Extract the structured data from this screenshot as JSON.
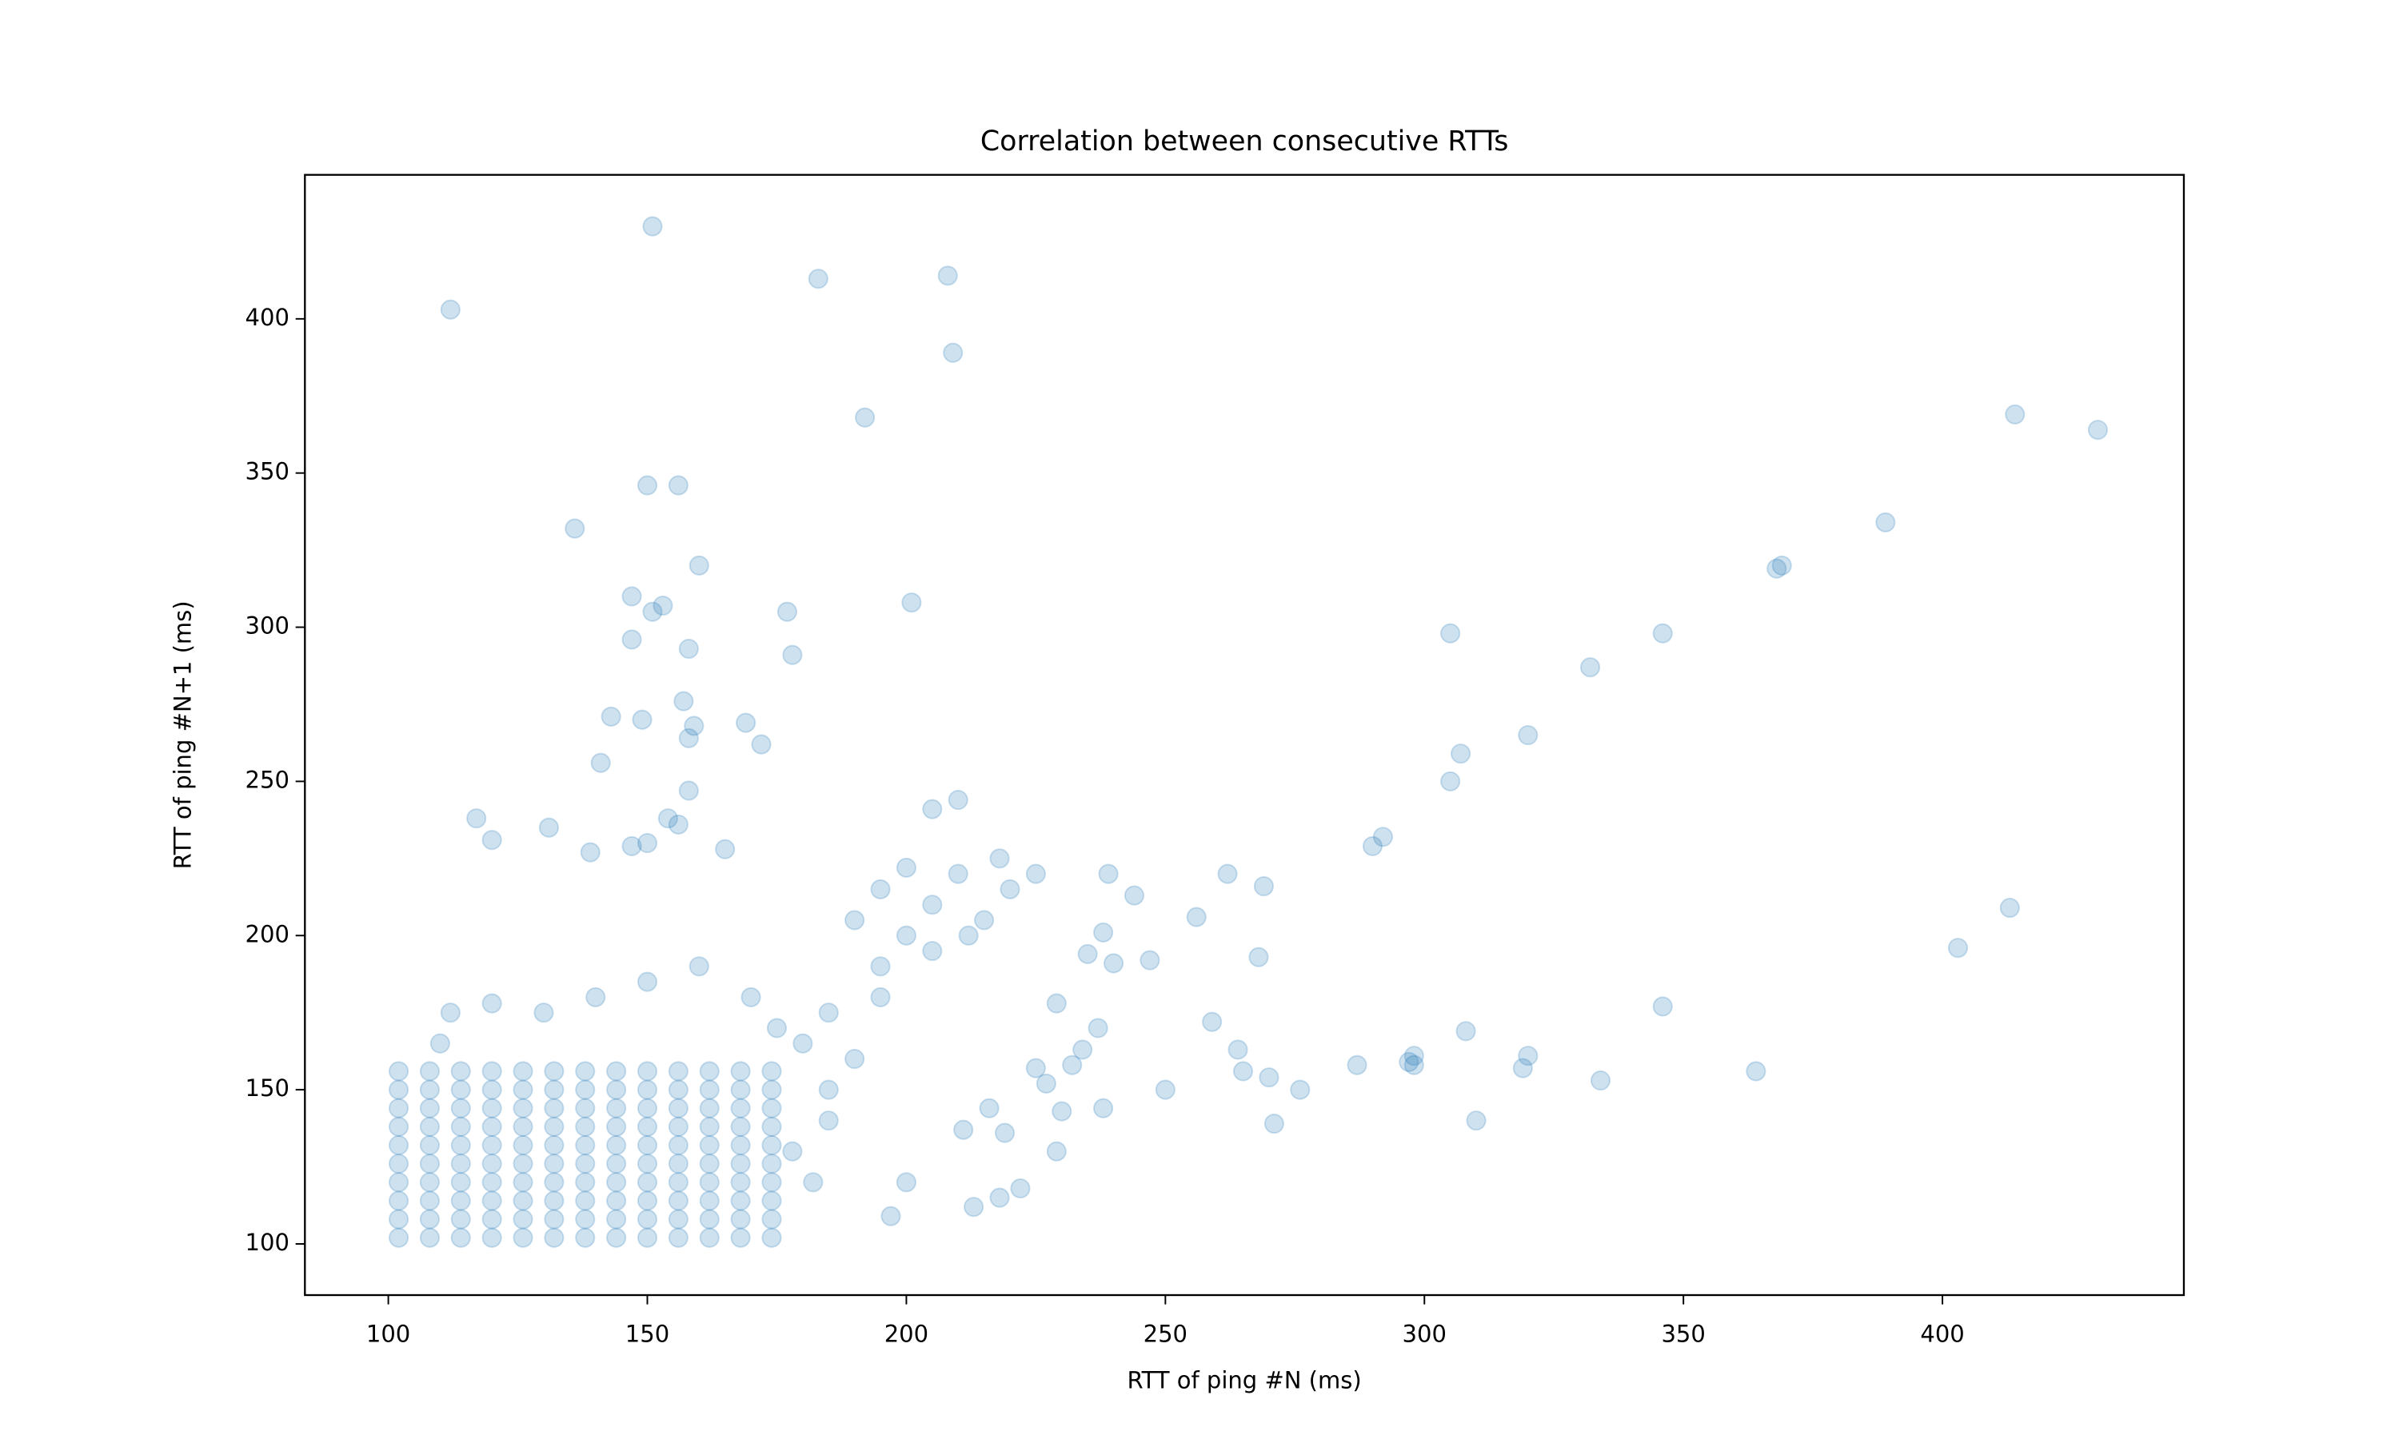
{
  "chart_data": {
    "type": "scatter",
    "title": "Correlation between consecutive RTTs",
    "x_label": "RTT of ping #N (ms)",
    "y_label": "RTT of ping #N+1 (ms)",
    "color": "#1f77b4",
    "alpha": 0.22,
    "xlim": [
      83.9,
      446.6
    ],
    "ylim": [
      83.4,
      446.7
    ],
    "xticks": [
      100,
      150,
      200,
      250,
      300,
      350,
      400
    ],
    "yticks": [
      100,
      150,
      200,
      250,
      300,
      350,
      400
    ],
    "x": [
      102,
      108,
      114,
      120,
      126,
      132,
      138,
      144,
      150,
      156,
      162,
      168,
      174,
      102,
      108,
      114,
      120,
      126,
      132,
      138,
      144,
      150,
      156,
      162,
      168,
      174,
      102,
      108,
      114,
      120,
      126,
      132,
      138,
      144,
      150,
      156,
      162,
      168,
      174,
      102,
      108,
      114,
      120,
      126,
      132,
      138,
      144,
      150,
      156,
      162,
      168,
      174,
      102,
      108,
      114,
      120,
      126,
      132,
      138,
      144,
      150,
      156,
      162,
      168,
      174,
      102,
      108,
      114,
      120,
      126,
      132,
      138,
      144,
      150,
      156,
      162,
      168,
      174,
      102,
      108,
      114,
      120,
      126,
      132,
      138,
      144,
      150,
      156,
      162,
      168,
      174,
      102,
      108,
      114,
      120,
      126,
      132,
      138,
      144,
      150,
      156,
      162,
      168,
      174,
      102,
      108,
      114,
      120,
      126,
      132,
      138,
      144,
      150,
      156,
      162,
      168,
      174,
      102,
      108,
      114,
      120,
      126,
      132,
      138,
      144,
      150,
      156,
      162,
      168,
      174,
      190,
      195,
      200,
      205,
      210,
      215,
      220,
      225,
      200,
      212,
      218,
      205,
      195,
      185,
      180,
      190,
      185,
      195,
      175,
      170,
      160,
      150,
      140,
      130,
      120,
      112,
      110,
      178,
      182,
      185,
      151,
      112,
      183,
      208,
      209,
      192,
      414,
      430,
      136,
      150,
      156,
      389,
      369,
      368,
      147,
      151,
      153,
      160,
      201,
      177,
      178,
      147,
      158,
      305,
      346,
      332,
      320,
      307,
      305,
      292,
      290,
      143,
      149,
      157,
      159,
      158,
      169,
      172,
      141,
      158,
      154,
      156,
      210,
      205,
      117,
      120,
      131,
      139,
      147,
      150,
      165,
      262,
      239,
      244,
      269,
      256,
      238,
      235,
      247,
      240,
      268,
      259,
      237,
      264,
      265,
      270,
      276,
      287,
      297,
      298,
      298,
      308,
      319,
      320,
      334,
      346,
      364,
      310,
      271,
      250,
      238,
      229,
      230,
      229,
      234,
      232,
      413,
      403,
      197,
      200,
      213,
      218,
      222,
      211,
      216,
      219,
      225,
      227
    ],
    "values": [
      102,
      102,
      102,
      102,
      102,
      102,
      102,
      102,
      102,
      102,
      102,
      102,
      102,
      108,
      108,
      108,
      108,
      108,
      108,
      108,
      108,
      108,
      108,
      108,
      108,
      108,
      114,
      114,
      114,
      114,
      114,
      114,
      114,
      114,
      114,
      114,
      114,
      114,
      114,
      120,
      120,
      120,
      120,
      120,
      120,
      120,
      120,
      120,
      120,
      120,
      120,
      120,
      126,
      126,
      126,
      126,
      126,
      126,
      126,
      126,
      126,
      126,
      126,
      126,
      126,
      132,
      132,
      132,
      132,
      132,
      132,
      132,
      132,
      132,
      132,
      132,
      132,
      132,
      138,
      138,
      138,
      138,
      138,
      138,
      138,
      138,
      138,
      138,
      138,
      138,
      138,
      144,
      144,
      144,
      144,
      144,
      144,
      144,
      144,
      144,
      144,
      144,
      144,
      144,
      150,
      150,
      150,
      150,
      150,
      150,
      150,
      150,
      150,
      150,
      150,
      150,
      150,
      156,
      156,
      156,
      156,
      156,
      156,
      156,
      156,
      156,
      156,
      156,
      156,
      156,
      205,
      215,
      200,
      210,
      220,
      205,
      215,
      220,
      222,
      200,
      225,
      195,
      190,
      175,
      165,
      160,
      150,
      180,
      170,
      180,
      190,
      185,
      180,
      175,
      178,
      175,
      165,
      130,
      120,
      140,
      430,
      403,
      413,
      414,
      389,
      368,
      369,
      364,
      332,
      346,
      346,
      334,
      320,
      319,
      310,
      305,
      307,
      320,
      308,
      305,
      291,
      296,
      293,
      298,
      298,
      287,
      265,
      259,
      250,
      232,
      229,
      271,
      270,
      276,
      268,
      264,
      269,
      262,
      256,
      247,
      238,
      236,
      244,
      241,
      238,
      231,
      235,
      227,
      229,
      230,
      228,
      220,
      220,
      213,
      216,
      206,
      201,
      194,
      192,
      191,
      193,
      172,
      170,
      163,
      156,
      154,
      150,
      158,
      159,
      161,
      158,
      169,
      157,
      161,
      153,
      177,
      156,
      140,
      139,
      150,
      144,
      130,
      143,
      178,
      163,
      158,
      209,
      196,
      109,
      120,
      112,
      115,
      118,
      137,
      144,
      136,
      157,
      152
    ]
  }
}
